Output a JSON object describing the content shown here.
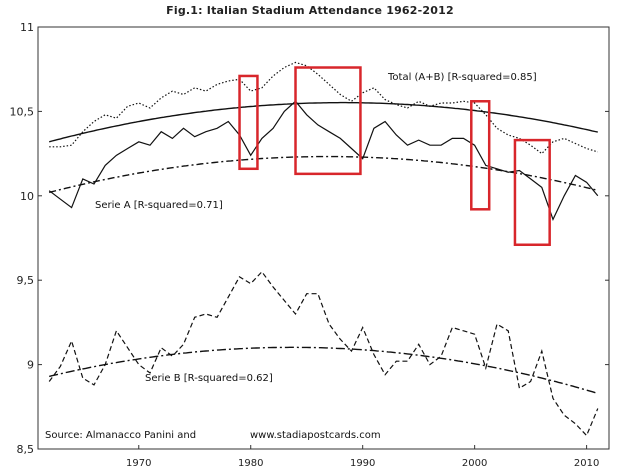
{
  "chart_data": {
    "type": "line",
    "title": "Fig.1: Italian Stadium Attendance 1962-2012",
    "xlabel": "",
    "ylabel": "",
    "xlim": [
      1961,
      2012
    ],
    "ylim": [
      8.5,
      11
    ],
    "x_ticks": [
      1970,
      1980,
      1990,
      2000,
      2010
    ],
    "y_ticks": [
      8.5,
      9,
      9.5,
      10,
      10.5,
      11
    ],
    "y_tick_labels": [
      "8,5",
      "9",
      "9,5",
      "10",
      "10,5",
      "11"
    ],
    "grid": false,
    "years": [
      1962,
      1963,
      1964,
      1965,
      1966,
      1967,
      1968,
      1969,
      1970,
      1971,
      1972,
      1973,
      1974,
      1975,
      1976,
      1977,
      1978,
      1979,
      1980,
      1981,
      1982,
      1983,
      1984,
      1985,
      1986,
      1987,
      1988,
      1989,
      1990,
      1991,
      1992,
      1993,
      1994,
      1995,
      1996,
      1997,
      1998,
      1999,
      2000,
      2001,
      2002,
      2003,
      2004,
      2005,
      2006,
      2007,
      2008,
      2009,
      2010,
      2011
    ],
    "series": [
      {
        "style": "dotted",
        "values": [
          10.29,
          10.29,
          10.3,
          10.38,
          10.44,
          10.48,
          10.46,
          10.53,
          10.55,
          10.52,
          10.58,
          10.62,
          10.6,
          10.64,
          10.62,
          10.66,
          10.68,
          10.69,
          10.62,
          10.64,
          10.71,
          10.76,
          10.79,
          10.77,
          10.72,
          10.66,
          10.6,
          10.56,
          10.61,
          10.64,
          10.57,
          10.54,
          10.52,
          10.56,
          10.53,
          10.55,
          10.55,
          10.56,
          10.55,
          10.48,
          10.4,
          10.36,
          10.34,
          10.3,
          10.25,
          10.32,
          10.34,
          10.31,
          10.28,
          10.26
        ],
        "trend_label": "Total (A+B) [R-squared=0.85]"
      },
      {
        "style": "solid",
        "values": [
          10.03,
          9.98,
          9.93,
          10.1,
          10.07,
          10.18,
          10.24,
          10.28,
          10.32,
          10.3,
          10.38,
          10.34,
          10.4,
          10.35,
          10.38,
          10.4,
          10.44,
          10.36,
          10.24,
          10.34,
          10.4,
          10.5,
          10.56,
          10.48,
          10.42,
          10.38,
          10.34,
          10.28,
          10.22,
          10.4,
          10.44,
          10.36,
          10.3,
          10.33,
          10.3,
          10.3,
          10.34,
          10.34,
          10.3,
          10.18,
          10.16,
          10.14,
          10.15,
          10.1,
          10.05,
          9.86,
          10.0,
          10.12,
          10.08,
          10.0
        ],
        "trend_label": "Serie A [R-squared=0.71]"
      },
      {
        "style": "dashed",
        "values": [
          8.9,
          8.99,
          9.14,
          8.92,
          8.88,
          9.0,
          9.2,
          9.1,
          9.0,
          8.95,
          9.1,
          9.05,
          9.12,
          9.28,
          9.3,
          9.28,
          9.4,
          9.52,
          9.48,
          9.55,
          9.46,
          9.38,
          9.3,
          9.42,
          9.42,
          9.24,
          9.15,
          9.08,
          9.22,
          9.06,
          8.94,
          9.02,
          9.02,
          9.12,
          9.0,
          9.05,
          9.22,
          9.2,
          9.18,
          8.98,
          9.24,
          9.2,
          8.86,
          8.9,
          9.08,
          8.8,
          8.7,
          8.65,
          8.58,
          8.74
        ],
        "trend_label": "Serie B [R-squared=0.62]"
      }
    ],
    "trendlines": [
      {
        "style": "solid",
        "coeffs": [
          10.32,
          0.01768,
          -0.000337
        ]
      },
      {
        "style": "dash-dot",
        "coeffs": [
          10.02,
          0.0171,
          -0.000344
        ]
      },
      {
        "style": "dash-dot-long",
        "coeffs": [
          8.93,
          0.01588,
          -0.000366
        ]
      }
    ],
    "highlight_boxes": [
      {
        "x": [
          1979.0,
          1980.6
        ],
        "y": [
          10.16,
          10.71
        ]
      },
      {
        "x": [
          1984.0,
          1989.8
        ],
        "y": [
          10.13,
          10.76
        ]
      },
      {
        "x": [
          1999.7,
          2001.3
        ],
        "y": [
          9.92,
          10.56
        ]
      },
      {
        "x": [
          2003.6,
          2006.7
        ],
        "y": [
          9.71,
          10.33
        ]
      }
    ],
    "highlight_color": "#d8262b",
    "source_text": "Source:  Almanacco Panini and",
    "source_url": "www.stadiapostcards.com"
  }
}
